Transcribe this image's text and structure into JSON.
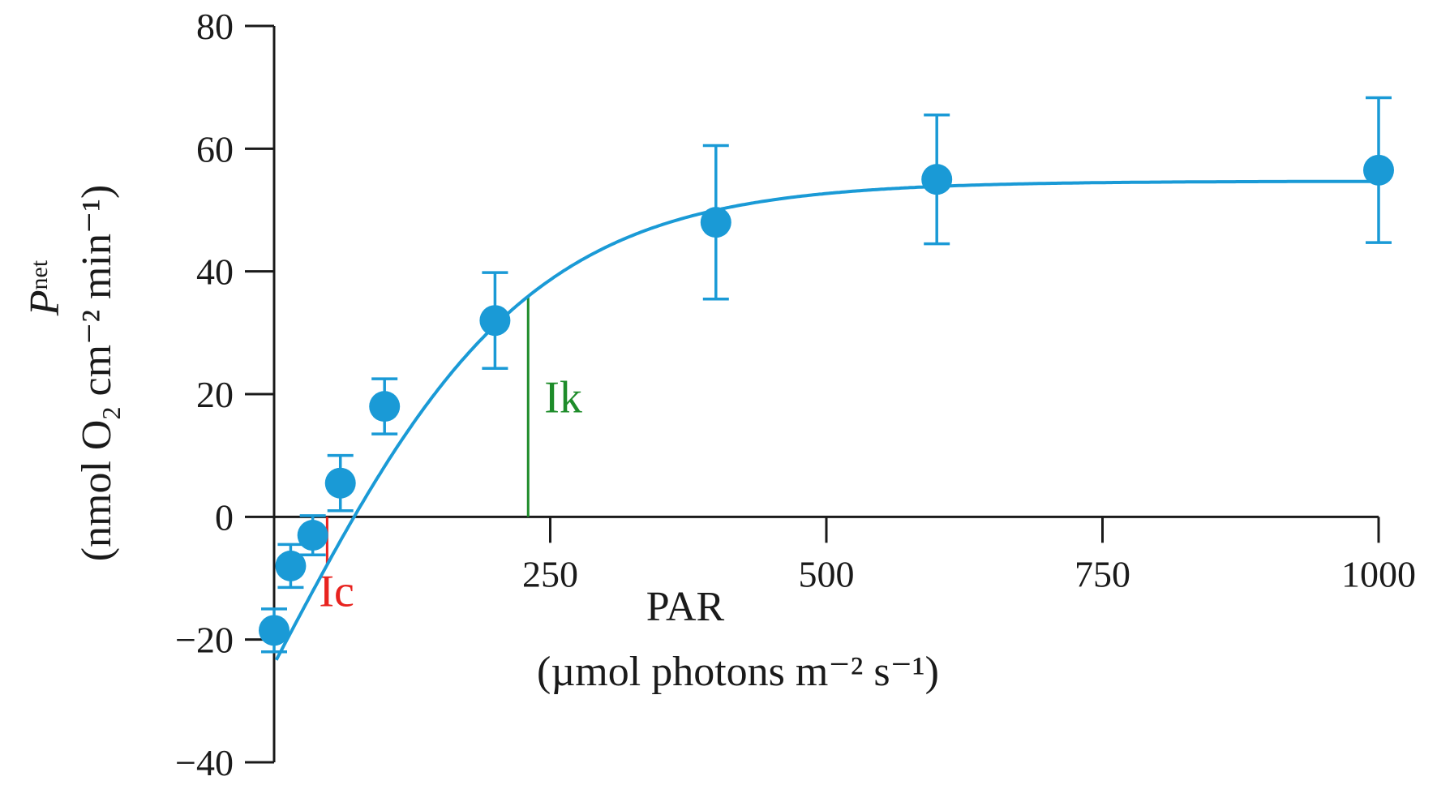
{
  "chart_data": {
    "type": "scatter",
    "xlabel_line1": "PAR",
    "xlabel_line2": "(µmol photons m⁻² s⁻¹)",
    "ylabel_symbol": "P",
    "ylabel_subscript": "net",
    "ylabel_units_pre": "(nmol O",
    "ylabel_units_sub": "2",
    "ylabel_units_post": " cm⁻² min⁻¹)",
    "x_ticks": [
      {
        "value": 250,
        "label": "250"
      },
      {
        "value": 500,
        "label": "500"
      },
      {
        "value": 750,
        "label": "750"
      },
      {
        "value": 1000,
        "label": "1000"
      }
    ],
    "y_ticks": [
      {
        "value": 80,
        "label": "80"
      },
      {
        "value": 60,
        "label": "60"
      },
      {
        "value": 40,
        "label": "40"
      },
      {
        "value": 20,
        "label": "20"
      },
      {
        "value": 0,
        "label": "0"
      },
      {
        "value": -20,
        "label": "−20"
      },
      {
        "value": -40,
        "label": "−40"
      }
    ],
    "xlim": [
      0,
      1000
    ],
    "ylim": [
      -40,
      80
    ],
    "grid": false,
    "series": [
      {
        "color": "#1a9ad6",
        "points": [
          {
            "x": 0,
            "y": -18.5,
            "err": 3.5
          },
          {
            "x": 15,
            "y": -8.0,
            "err": 3.5
          },
          {
            "x": 35,
            "y": -3.0,
            "err": 3.2
          },
          {
            "x": 60,
            "y": 5.5,
            "err": 4.5
          },
          {
            "x": 100,
            "y": 18.0,
            "err": 4.5
          },
          {
            "x": 200,
            "y": 32.0,
            "err": 7.8
          },
          {
            "x": 400,
            "y": 48.0,
            "err": 12.5
          },
          {
            "x": 600,
            "y": 55.0,
            "err": 10.5
          },
          {
            "x": 1000,
            "y": 56.5,
            "err": 11.8
          }
        ]
      }
    ],
    "fit_curve": {
      "color": "#1a9ad6",
      "pmax": 54.7,
      "rd": -24.0,
      "ik": 230
    },
    "annotations": [
      {
        "label": "Ic",
        "x": 48,
        "color": "#e8231f"
      },
      {
        "label": "Ik",
        "x": 230,
        "color": "#1e8c2a"
      }
    ]
  }
}
